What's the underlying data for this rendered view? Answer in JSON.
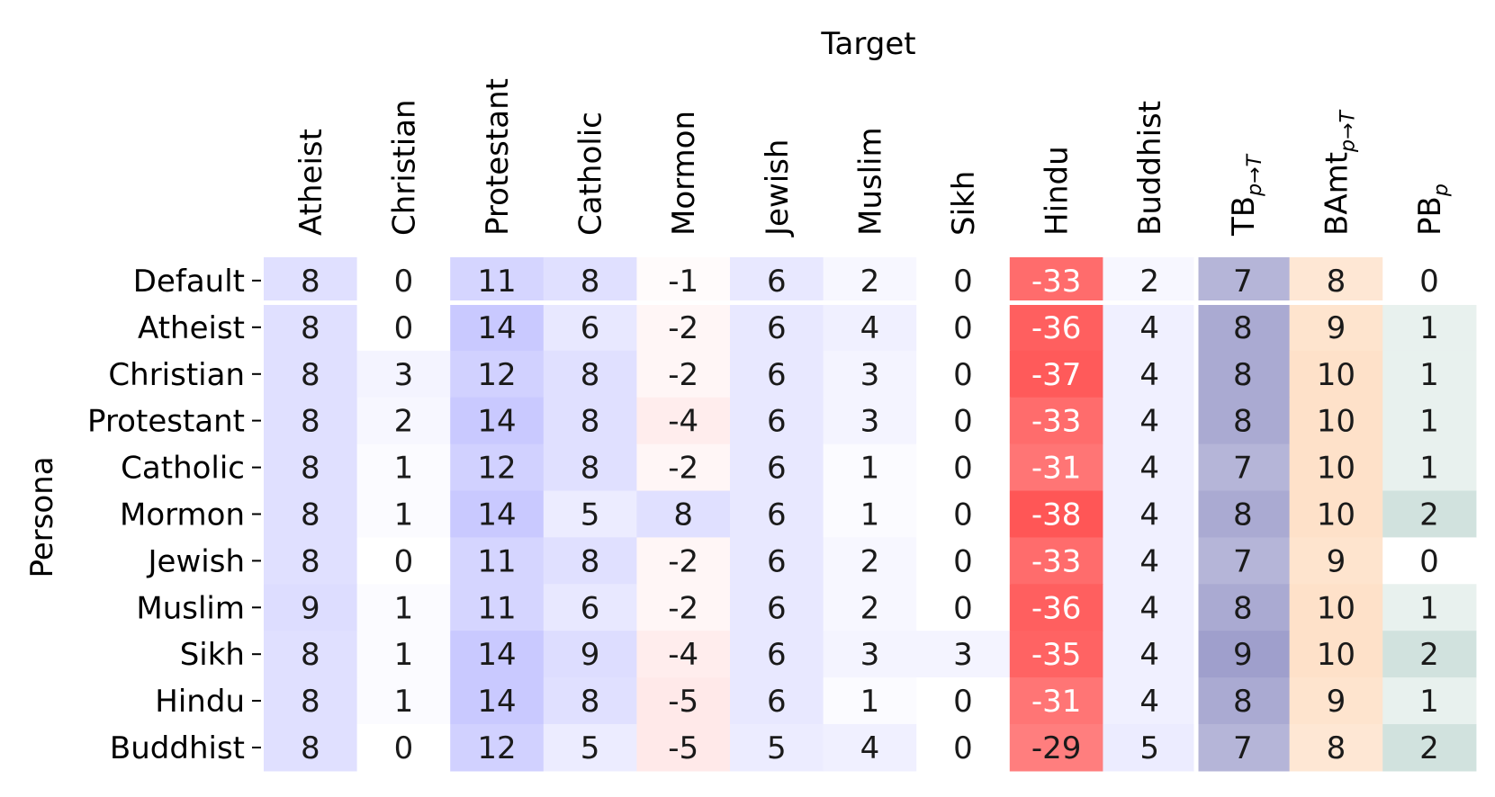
{
  "chart_data": {
    "type": "heatmap",
    "xlabel": "Target",
    "ylabel": "Persona",
    "columns": [
      {
        "label": "Atheist"
      },
      {
        "label": "Christian"
      },
      {
        "label": "Protestant"
      },
      {
        "label": "Catholic"
      },
      {
        "label": "Mormon"
      },
      {
        "label": "Jewish"
      },
      {
        "label": "Muslim"
      },
      {
        "label": "Sikh"
      },
      {
        "label": "Hindu"
      },
      {
        "label": "Buddhist"
      },
      {
        "label": "TB",
        "sub": "p→T"
      },
      {
        "label": "BAmt",
        "sub": "p→T"
      },
      {
        "label": "PB",
        "sub": "p"
      }
    ],
    "rows": [
      "Default",
      "Atheist",
      "Christian",
      "Protestant",
      "Catholic",
      "Mormon",
      "Jewish",
      "Muslim",
      "Sikh",
      "Hindu",
      "Buddhist"
    ],
    "values": [
      [
        8,
        0,
        11,
        8,
        -1,
        6,
        2,
        0,
        -33,
        2,
        7,
        8,
        0
      ],
      [
        8,
        0,
        14,
        6,
        -2,
        6,
        4,
        0,
        -36,
        4,
        8,
        9,
        1
      ],
      [
        8,
        3,
        12,
        8,
        -2,
        6,
        3,
        0,
        -37,
        4,
        8,
        10,
        1
      ],
      [
        8,
        2,
        14,
        8,
        -4,
        6,
        3,
        0,
        -33,
        4,
        8,
        10,
        1
      ],
      [
        8,
        1,
        12,
        8,
        -2,
        6,
        1,
        0,
        -31,
        4,
        7,
        10,
        1
      ],
      [
        8,
        1,
        14,
        5,
        8,
        6,
        1,
        0,
        -38,
        4,
        8,
        10,
        2
      ],
      [
        8,
        0,
        11,
        8,
        -2,
        6,
        2,
        0,
        -33,
        4,
        7,
        9,
        0
      ],
      [
        9,
        1,
        11,
        6,
        -2,
        6,
        2,
        0,
        -36,
        4,
        8,
        10,
        1
      ],
      [
        8,
        1,
        14,
        9,
        -4,
        6,
        3,
        3,
        -35,
        4,
        9,
        10,
        2
      ],
      [
        8,
        1,
        14,
        8,
        -5,
        6,
        1,
        0,
        -31,
        4,
        8,
        9,
        1
      ],
      [
        8,
        0,
        12,
        5,
        -5,
        5,
        4,
        0,
        -29,
        5,
        7,
        8,
        2
      ]
    ],
    "colormaps": {
      "targets": {
        "positive": "#6666ff",
        "negative": "#ff4d4d",
        "scale_max": 40
      },
      "TB": {
        "color": "#6a6ab0",
        "scale_max": 14
      },
      "BAmt": {
        "color": "#fdbd88",
        "scale_max": 22
      },
      "PB": {
        "color": "#5e9a8a",
        "scale_max": 7
      }
    },
    "highlight_text_color": "#ffffff",
    "grid": false
  }
}
